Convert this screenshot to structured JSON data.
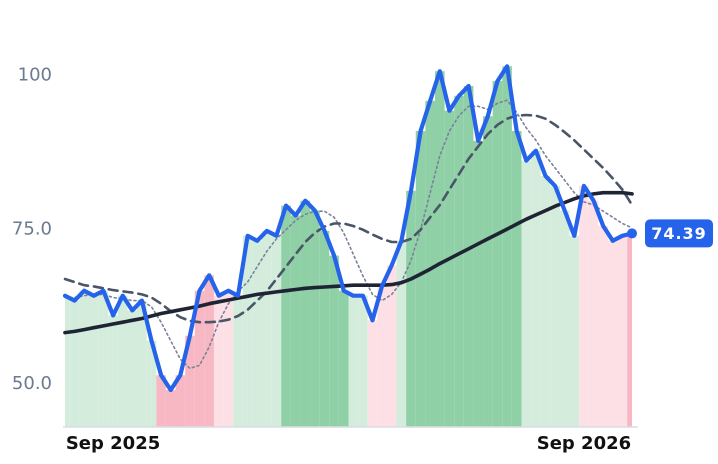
{
  "chart_data": {
    "type": "line",
    "categories": [
      null,
      null,
      null,
      null,
      null,
      "Sep 2025",
      null,
      null,
      null,
      null,
      null,
      null,
      null,
      null,
      null,
      null,
      null,
      null,
      null,
      null,
      null,
      null,
      null,
      null,
      null,
      null,
      null,
      null,
      null,
      null,
      null,
      null,
      null,
      null,
      null,
      null,
      null,
      null,
      null,
      null,
      null,
      null,
      null,
      null,
      null,
      null,
      null,
      null,
      null,
      null,
      null,
      null,
      null,
      null,
      "Sep 2026",
      null,
      null,
      null,
      null,
      null
    ],
    "ylim": [
      43,
      109
    ],
    "yticks": [
      {
        "value": 50,
        "label": "50.0"
      },
      {
        "value": 75,
        "label": "75.0"
      },
      100
    ],
    "fill_colors": [
      "#d4ecdb",
      "#d4ecdb",
      "#d4ecdb",
      "#d4ecdb",
      "#d4ecdb",
      "#d4ecdb",
      "#d4ecdb",
      "#d4ecdb",
      "#d4ecdb",
      "#d4ecdb",
      "#f7b8c4",
      "#f7b8c4",
      "#f7b8c4",
      "#f7b8c4",
      "#f7b8c4",
      "#f7b8c4",
      "#fde0e6",
      "#fde0e6",
      "#d4ecdb",
      "#d4ecdb",
      "#d4ecdb",
      "#d4ecdb",
      "#d4ecdb",
      "#8fd0a6",
      "#8fd0a6",
      "#8fd0a6",
      "#8fd0a6",
      "#8fd0a6",
      "#8fd0a6",
      "#8fd0a6",
      "#d4ecdb",
      "#d4ecdb",
      "#fde0e6",
      "#fde0e6",
      "#fde0e6",
      "#d4ecdb",
      "#8fd0a6",
      "#8fd0a6",
      "#8fd0a6",
      "#8fd0a6",
      "#8fd0a6",
      "#8fd0a6",
      "#8fd0a6",
      "#8fd0a6",
      "#8fd0a6",
      "#8fd0a6",
      "#8fd0a6",
      "#8fd0a6",
      "#d4ecdb",
      "#d4ecdb",
      "#d4ecdb",
      "#d4ecdb",
      "#d4ecdb",
      "#d4ecdb",
      "#fde0e6",
      "#fde0e6",
      "#fde0e6",
      "#fde0e6",
      "#fde0e6",
      "#f7b8c4"
    ],
    "series": [
      {
        "color": "#7a8299",
        "style": "dotted",
        "width": 1.6,
        "values": [
          64,
          64,
          64.3,
          64.5,
          64.5,
          64,
          63.8,
          63.5,
          63.5,
          62.5,
          60,
          57,
          54,
          52.5,
          53,
          56,
          60,
          63,
          65,
          66.5,
          69,
          71.5,
          73.5,
          75,
          76.5,
          77.5,
          78,
          78,
          77,
          74.5,
          71,
          67.5,
          64.5,
          63.5,
          64.5,
          66.5,
          70,
          75,
          81,
          87,
          91,
          93.5,
          95,
          95,
          94.5,
          95.5,
          96,
          94,
          91.5,
          89.5,
          87,
          85,
          83,
          81,
          79.5,
          79,
          78,
          77,
          76,
          75.3
        ]
      },
      {
        "color": "#4a5568",
        "style": "dashed",
        "width": 2.6,
        "values": [
          67,
          66.5,
          66,
          65.8,
          65.5,
          65.2,
          65,
          64.8,
          64.5,
          64,
          63,
          61.8,
          60.8,
          60.2,
          60,
          60,
          60.1,
          60.4,
          61,
          62,
          63.5,
          65,
          67,
          69,
          71,
          73,
          74.5,
          75.5,
          76,
          76,
          75.6,
          75,
          74.2,
          73.5,
          73,
          73,
          73.5,
          75,
          77,
          79,
          81.5,
          84,
          86.5,
          88.5,
          90.5,
          92,
          93,
          93.5,
          93.6,
          93.5,
          93,
          92,
          90.8,
          89.5,
          88,
          86.5,
          85,
          83.3,
          81.5,
          79
        ]
      },
      {
        "color": "#1e2433",
        "style": "solid",
        "width": 3.6,
        "values": [
          58.3,
          58.5,
          58.8,
          59.1,
          59.4,
          59.7,
          60,
          60.3,
          60.6,
          61,
          61.4,
          61.7,
          62,
          62.3,
          62.6,
          63,
          63.3,
          63.6,
          63.9,
          64.2,
          64.5,
          64.7,
          64.9,
          65.1,
          65.3,
          65.5,
          65.6,
          65.7,
          65.8,
          65.9,
          66,
          66,
          66,
          66,
          66.1,
          66.4,
          67,
          67.8,
          68.6,
          69.5,
          70.3,
          71.1,
          71.9,
          72.7,
          73.5,
          74.3,
          75.1,
          75.9,
          76.7,
          77.4,
          78.1,
          78.8,
          79.4,
          80,
          80.5,
          80.8,
          81,
          81,
          81,
          80.8
        ]
      },
      {
        "color": "#2563eb",
        "style": "solid",
        "width": 4.2,
        "filled": true,
        "values": [
          64.3,
          63.5,
          65.1,
          64.3,
          65.1,
          61.1,
          64.3,
          61.9,
          63.5,
          57,
          51.4,
          49,
          51.4,
          57.8,
          65.1,
          67.6,
          64.3,
          65.1,
          64.3,
          74,
          73.2,
          74.8,
          74,
          78.9,
          77.3,
          79.7,
          78.1,
          74.8,
          70.8,
          65.1,
          64.3,
          64.3,
          60.3,
          65.9,
          69.2,
          73.2,
          81.3,
          91,
          95.9,
          100.7,
          94.3,
          96.7,
          98.3,
          89.4,
          93.4,
          99.1,
          101.5,
          91,
          86.2,
          87.8,
          83.7,
          82.1,
          78.1,
          74,
          82.1,
          79.7,
          75.6,
          73.2,
          74,
          74.39
        ]
      }
    ]
  }
}
